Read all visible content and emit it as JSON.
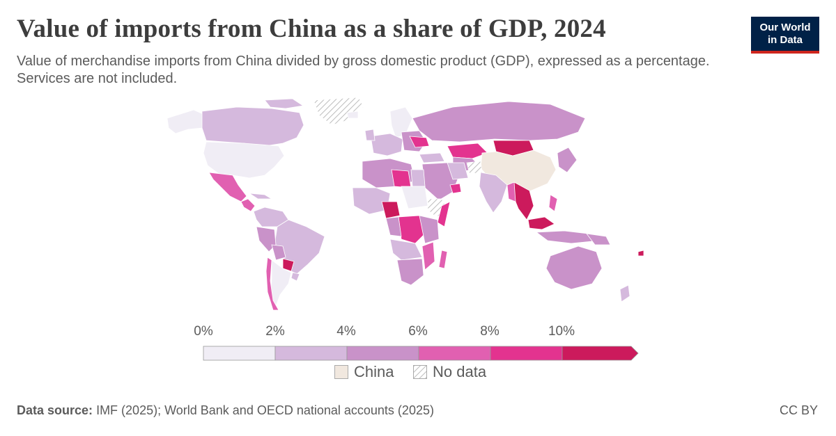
{
  "header": {
    "title": "Value of imports from China as a share of GDP, 2024",
    "subtitle": "Value of merchandise imports from China divided by gross domestic product (GDP), expressed as a percentage. Services are not included.",
    "logo_line1": "Our World",
    "logo_line2": "in Data"
  },
  "legend": {
    "ticks": [
      "0%",
      "2%",
      "4%",
      "6%",
      "8%",
      "10%"
    ],
    "bins": [
      {
        "color": "#f0edf5"
      },
      {
        "color": "#d5b9dd"
      },
      {
        "color": "#c992c9"
      },
      {
        "color": "#e160b1"
      },
      {
        "color": "#e3338f"
      },
      {
        "color": "#cc1a5c"
      }
    ],
    "categories": [
      {
        "label": "China",
        "color": "#f1e8df"
      },
      {
        "label": "No data",
        "pattern": "hatched"
      }
    ]
  },
  "footer": {
    "source_label": "Data source:",
    "source_text": "IMF (2025); World Bank and OECD national accounts (2025)",
    "license": "CC BY"
  }
}
